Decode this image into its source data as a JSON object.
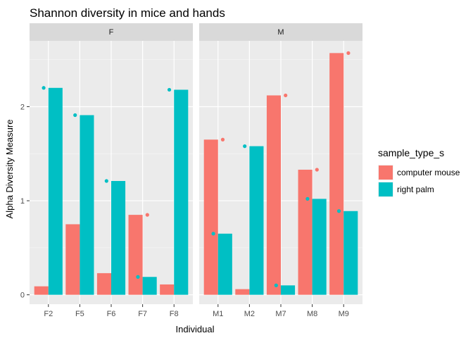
{
  "chart_data": {
    "type": "bar",
    "title": "Shannon diversity in mice and hands",
    "xlabel": "Individual",
    "ylabel": "Alpha Diversity Measure",
    "ylim": [
      -0.1,
      2.7
    ],
    "yticks": [
      0,
      1,
      2
    ],
    "grid": true,
    "legend": {
      "title": "sample_type_s",
      "placement": "right",
      "entries": [
        "computer mouse",
        "right palm"
      ]
    },
    "colors": {
      "computer mouse": "#F8766D",
      "right palm": "#00BFC4"
    },
    "facets": [
      {
        "label": "F",
        "categories": [
          "F2",
          "F5",
          "F6",
          "F7",
          "F8"
        ],
        "series": [
          {
            "name": "computer mouse",
            "values": [
              0.09,
              0.75,
              0.23,
              0.85,
              0.11
            ]
          },
          {
            "name": "right palm",
            "values": [
              2.2,
              1.91,
              1.21,
              0.19,
              2.18
            ]
          }
        ]
      },
      {
        "label": "M",
        "categories": [
          "M1",
          "M2",
          "M7",
          "M8",
          "M9"
        ],
        "series": [
          {
            "name": "computer mouse",
            "values": [
              1.65,
              0.06,
              2.12,
              1.33,
              2.57
            ]
          },
          {
            "name": "right palm",
            "values": [
              0.65,
              1.58,
              0.1,
              1.02,
              0.89
            ]
          }
        ]
      }
    ]
  }
}
